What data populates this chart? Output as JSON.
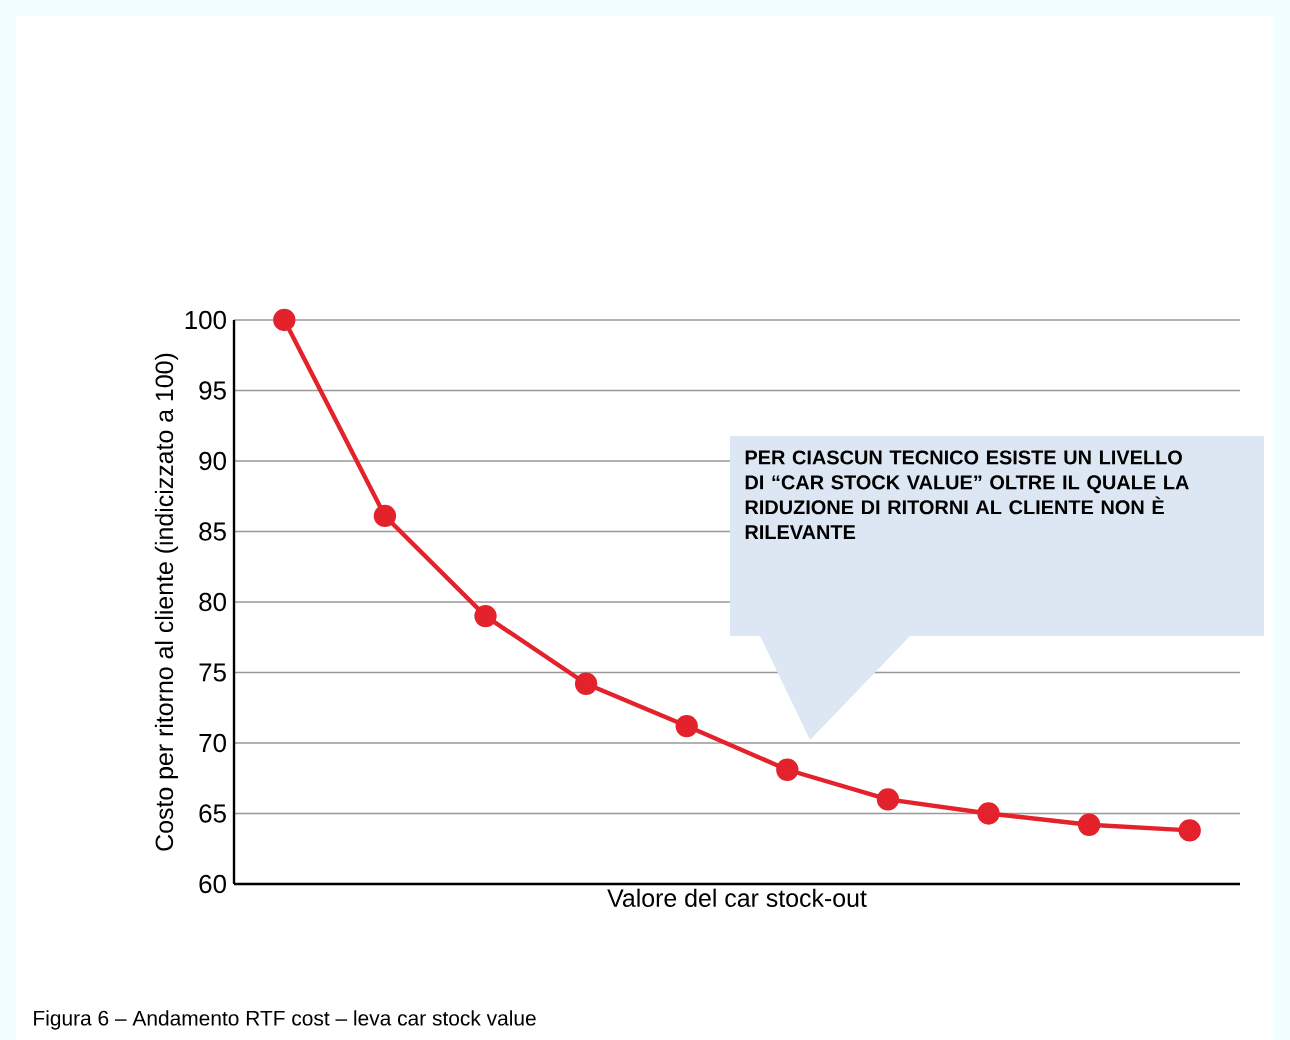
{
  "chart_data": {
    "type": "line",
    "xlabel": "Valore del car stock-out",
    "ylabel": "Costo per ritorno al cliente (indicizzato a 100)",
    "categories": [
      null,
      null,
      null,
      null,
      null,
      null,
      null,
      null,
      null,
      null
    ],
    "series": [
      {
        "color": "#e3222b",
        "values": [
          100,
          86.1,
          79,
          74.2,
          71.2,
          68.1,
          66,
          65,
          64.2,
          63.8
        ]
      }
    ],
    "ylim": [
      60,
      100
    ],
    "yticks": [
      60,
      65,
      70,
      75,
      80,
      85,
      90,
      95,
      100
    ],
    "grid": "y",
    "marker": "circle",
    "line_style": "solid",
    "annotations": [
      "PER CIASCUN TECNICO ESISTE UN LIVELLO DI “CAR STOCK VALUE” OLTRE IL QUALE LA RIDUZIONE DI RITORNI AL CLIENTE NON È RILEVANTE",
      "Figura 6 – Andamento RTF cost – leva car stock value"
    ]
  }
}
